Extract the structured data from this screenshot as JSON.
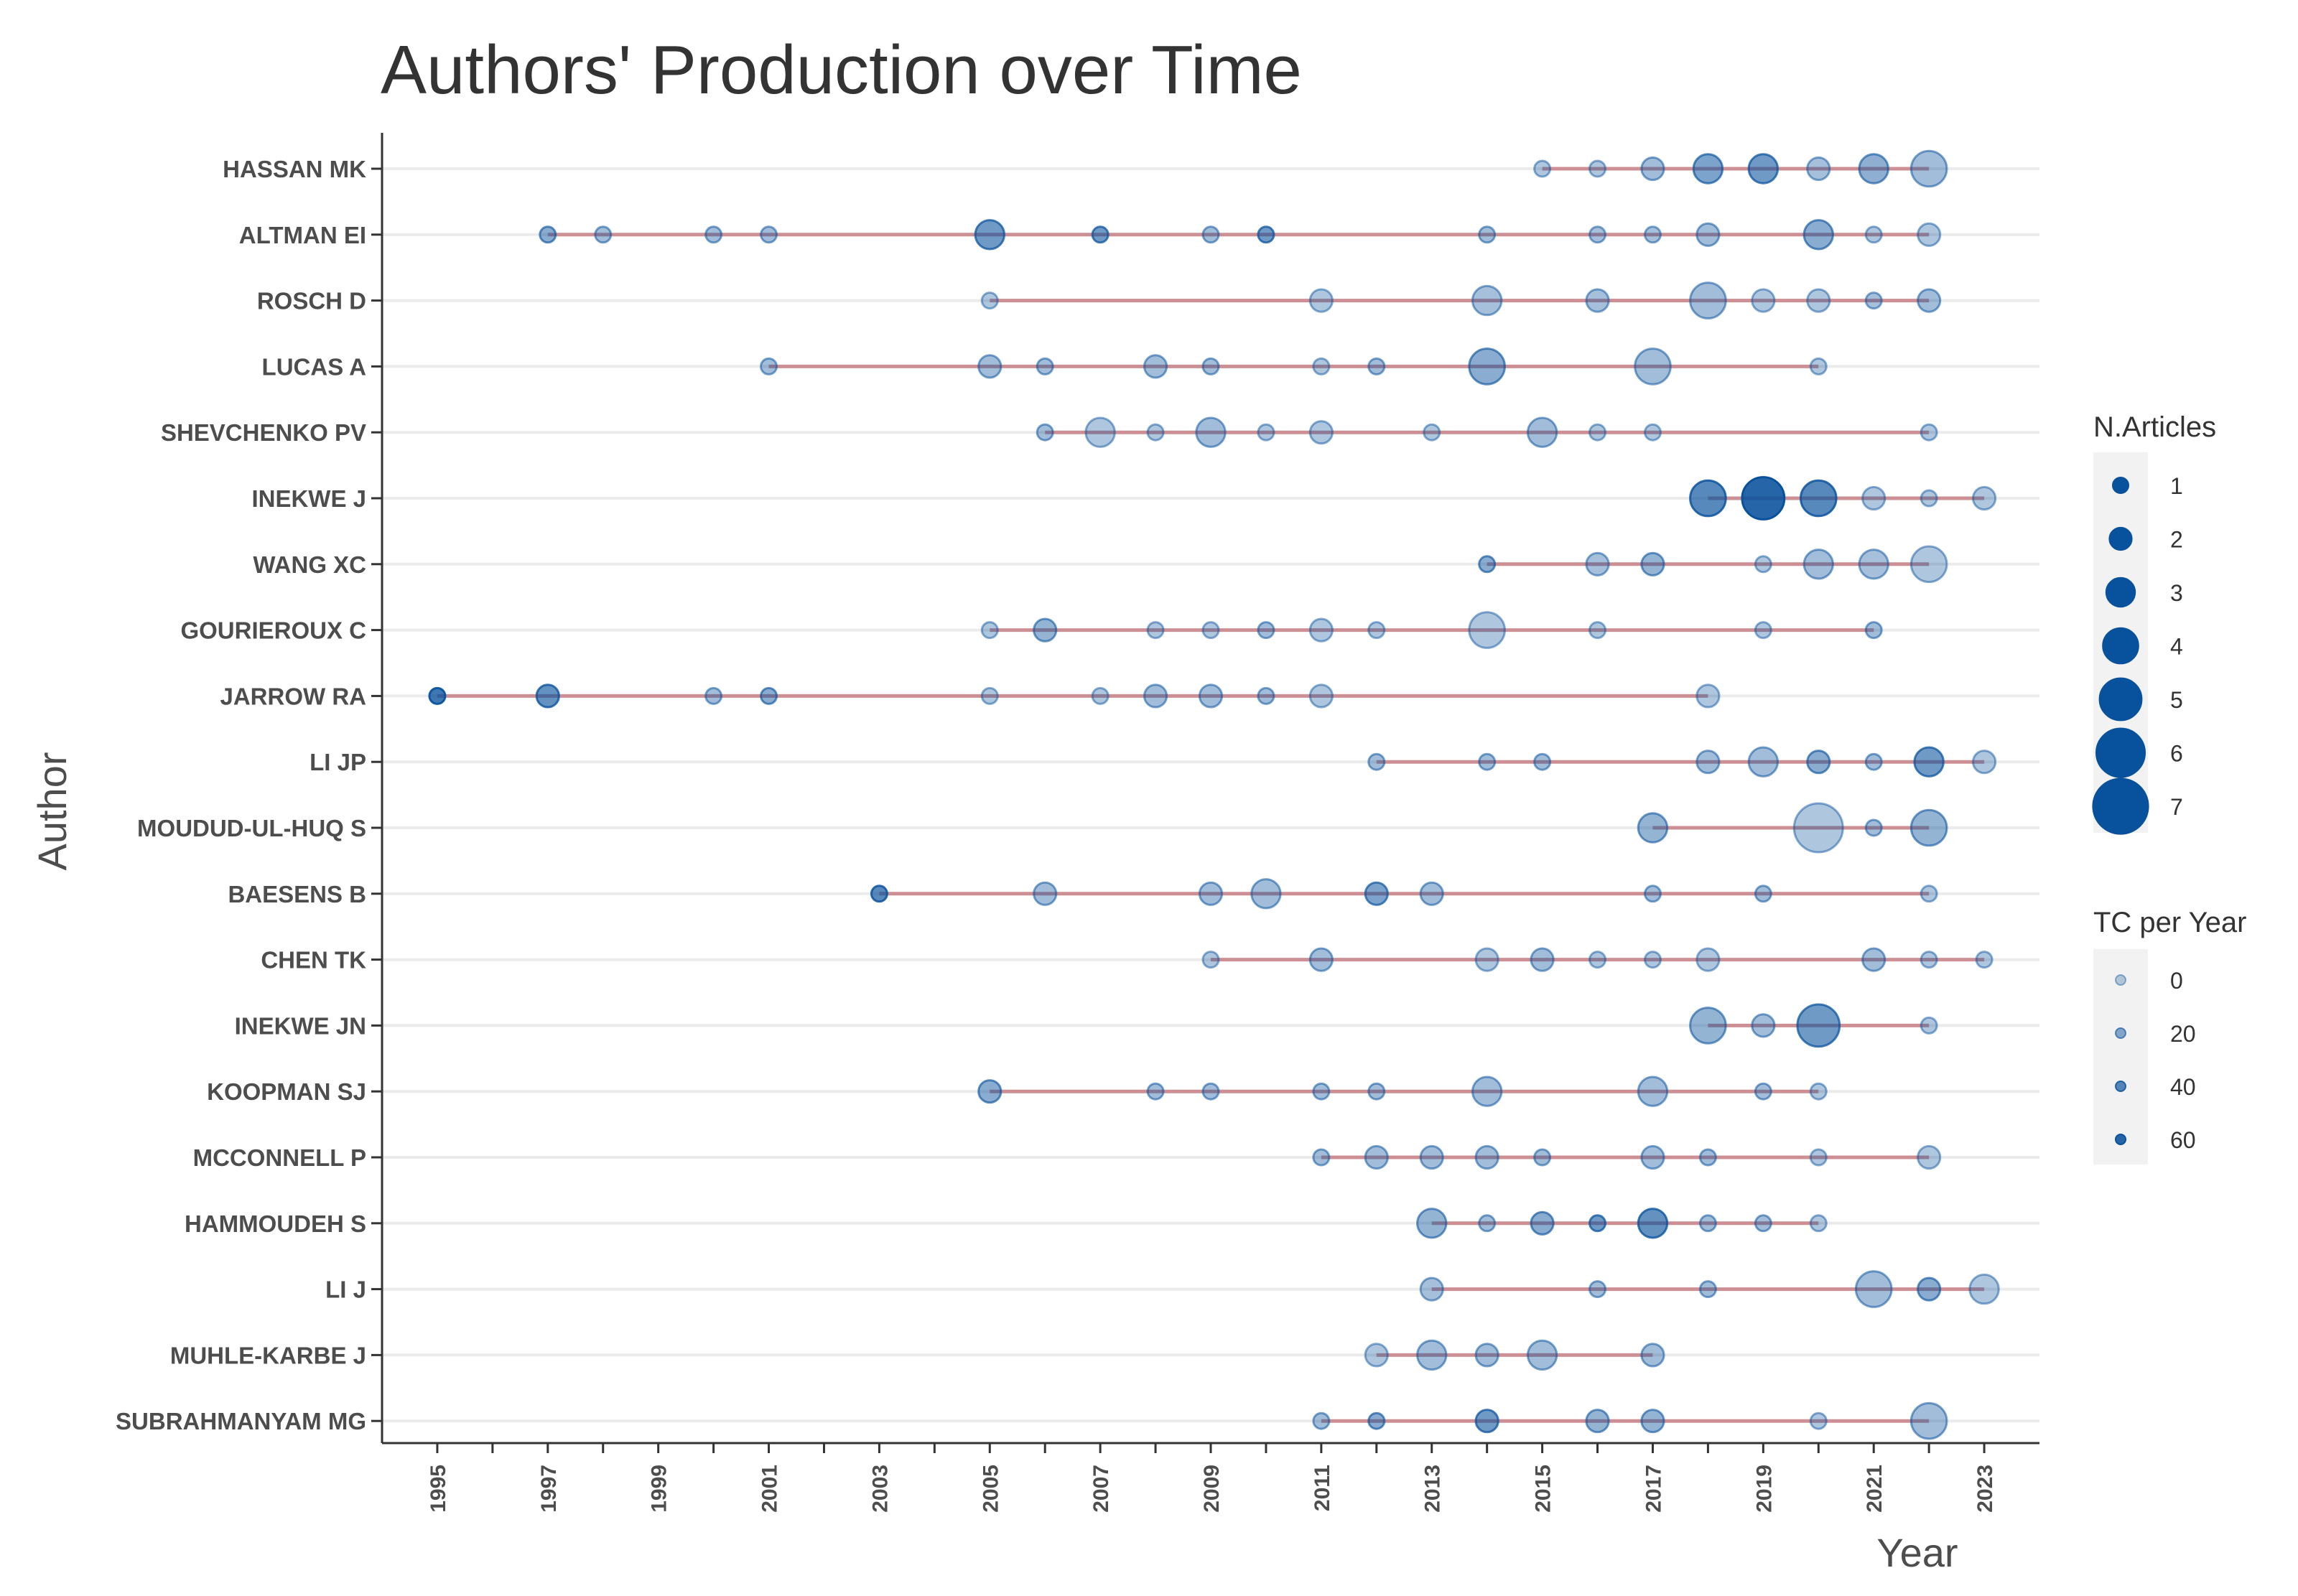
{
  "chart_data": {
    "type": "scatter",
    "title": "Authors' Production over Time",
    "xlabel": "Year",
    "ylabel": "Author",
    "xlim": [
      1994,
      2024
    ],
    "x_ticks": [
      "1995",
      "1997",
      "1999",
      "2001",
      "2003",
      "2005",
      "2007",
      "2009",
      "2011",
      "2013",
      "2015",
      "2017",
      "2019",
      "2021",
      "2023"
    ],
    "grid": true,
    "colors": {
      "point": "#08519c",
      "line": "#c9858a",
      "grid": "#ebebeb",
      "axis": "#333333",
      "legend_bg": "#f2f2f2"
    },
    "size_legend": {
      "title": "N.Articles",
      "values": [
        1,
        2,
        3,
        4,
        5,
        6,
        7
      ]
    },
    "tc_legend": {
      "title": "TC per Year",
      "values": [
        0,
        20,
        40,
        60
      ]
    },
    "authors": [
      {
        "name": "HASSAN MK",
        "points": [
          [
            2015,
            1,
            5
          ],
          [
            2016,
            1,
            5
          ],
          [
            2017,
            2,
            10
          ],
          [
            2018,
            3,
            25
          ],
          [
            2019,
            3,
            30
          ],
          [
            2020,
            2,
            8
          ],
          [
            2021,
            3,
            18
          ],
          [
            2022,
            4,
            10
          ]
        ]
      },
      {
        "name": "ALTMAN EI",
        "points": [
          [
            1997,
            1,
            20
          ],
          [
            1998,
            1,
            10
          ],
          [
            2000,
            1,
            10
          ],
          [
            2001,
            1,
            10
          ],
          [
            2005,
            3,
            30
          ],
          [
            2007,
            1,
            30
          ],
          [
            2009,
            1,
            10
          ],
          [
            2010,
            1,
            30
          ],
          [
            2014,
            1,
            10
          ],
          [
            2016,
            1,
            8
          ],
          [
            2017,
            1,
            8
          ],
          [
            2018,
            2,
            10
          ],
          [
            2020,
            3,
            20
          ],
          [
            2021,
            1,
            5
          ],
          [
            2022,
            2,
            5
          ]
        ]
      },
      {
        "name": "ROSCH D",
        "points": [
          [
            2005,
            1,
            5
          ],
          [
            2011,
            2,
            5
          ],
          [
            2014,
            3,
            8
          ],
          [
            2016,
            2,
            8
          ],
          [
            2018,
            4,
            10
          ],
          [
            2019,
            2,
            5
          ],
          [
            2020,
            2,
            5
          ],
          [
            2021,
            1,
            8
          ],
          [
            2022,
            2,
            10
          ]
        ]
      },
      {
        "name": "LUCAS A",
        "points": [
          [
            2001,
            1,
            10
          ],
          [
            2005,
            2,
            10
          ],
          [
            2006,
            1,
            10
          ],
          [
            2008,
            2,
            10
          ],
          [
            2009,
            1,
            10
          ],
          [
            2011,
            1,
            5
          ],
          [
            2012,
            1,
            10
          ],
          [
            2014,
            4,
            20
          ],
          [
            2017,
            4,
            10
          ],
          [
            2020,
            1,
            5
          ]
        ]
      },
      {
        "name": "SHEVCHENKO PV",
        "points": [
          [
            2006,
            1,
            10
          ],
          [
            2007,
            3,
            5
          ],
          [
            2008,
            1,
            5
          ],
          [
            2009,
            3,
            10
          ],
          [
            2010,
            1,
            5
          ],
          [
            2011,
            2,
            5
          ],
          [
            2013,
            1,
            5
          ],
          [
            2015,
            3,
            10
          ],
          [
            2016,
            1,
            5
          ],
          [
            2017,
            1,
            5
          ],
          [
            2022,
            1,
            5
          ]
        ]
      },
      {
        "name": "INEKWE J",
        "points": [
          [
            2018,
            4,
            40
          ],
          [
            2019,
            5,
            60
          ],
          [
            2020,
            4,
            40
          ],
          [
            2021,
            2,
            5
          ],
          [
            2022,
            1,
            5
          ],
          [
            2023,
            2,
            5
          ]
        ]
      },
      {
        "name": "WANG XC",
        "points": [
          [
            2014,
            1,
            20
          ],
          [
            2016,
            2,
            8
          ],
          [
            2017,
            2,
            15
          ],
          [
            2019,
            1,
            5
          ],
          [
            2020,
            3,
            10
          ],
          [
            2021,
            3,
            8
          ],
          [
            2022,
            4,
            5
          ]
        ]
      },
      {
        "name": "GOURIEROUX C",
        "points": [
          [
            2005,
            1,
            5
          ],
          [
            2006,
            2,
            15
          ],
          [
            2008,
            1,
            5
          ],
          [
            2009,
            1,
            5
          ],
          [
            2010,
            1,
            10
          ],
          [
            2011,
            2,
            5
          ],
          [
            2012,
            1,
            5
          ],
          [
            2014,
            4,
            5
          ],
          [
            2016,
            1,
            5
          ],
          [
            2019,
            1,
            5
          ],
          [
            2021,
            1,
            10
          ]
        ]
      },
      {
        "name": "JARROW RA",
        "points": [
          [
            1995,
            1,
            50
          ],
          [
            1997,
            2,
            35
          ],
          [
            2000,
            1,
            10
          ],
          [
            2001,
            1,
            20
          ],
          [
            2005,
            1,
            5
          ],
          [
            2007,
            1,
            5
          ],
          [
            2008,
            2,
            10
          ],
          [
            2009,
            2,
            10
          ],
          [
            2010,
            1,
            10
          ],
          [
            2011,
            2,
            5
          ],
          [
            2018,
            2,
            5
          ]
        ]
      },
      {
        "name": "LI JP",
        "points": [
          [
            2012,
            1,
            10
          ],
          [
            2014,
            1,
            10
          ],
          [
            2015,
            1,
            10
          ],
          [
            2018,
            2,
            10
          ],
          [
            2019,
            3,
            10
          ],
          [
            2020,
            2,
            20
          ],
          [
            2021,
            1,
            10
          ],
          [
            2022,
            3,
            30
          ],
          [
            2023,
            2,
            5
          ]
        ]
      },
      {
        "name": "MOUDUD-UL-HUQ S",
        "points": [
          [
            2017,
            3,
            15
          ],
          [
            2020,
            6,
            5
          ],
          [
            2021,
            1,
            10
          ],
          [
            2022,
            4,
            15
          ]
        ]
      },
      {
        "name": "BAESENS B",
        "points": [
          [
            2003,
            1,
            40
          ],
          [
            2006,
            2,
            10
          ],
          [
            2009,
            2,
            10
          ],
          [
            2010,
            3,
            10
          ],
          [
            2012,
            2,
            25
          ],
          [
            2013,
            2,
            10
          ],
          [
            2017,
            1,
            10
          ],
          [
            2019,
            1,
            10
          ],
          [
            2022,
            1,
            5
          ]
        ]
      },
      {
        "name": "CHEN TK",
        "points": [
          [
            2009,
            1,
            5
          ],
          [
            2011,
            2,
            10
          ],
          [
            2014,
            2,
            5
          ],
          [
            2015,
            2,
            10
          ],
          [
            2016,
            1,
            5
          ],
          [
            2017,
            1,
            5
          ],
          [
            2018,
            2,
            5
          ],
          [
            2021,
            2,
            10
          ],
          [
            2022,
            1,
            5
          ],
          [
            2023,
            1,
            5
          ]
        ]
      },
      {
        "name": "INEKWE JN",
        "points": [
          [
            2018,
            4,
            15
          ],
          [
            2019,
            2,
            10
          ],
          [
            2020,
            5,
            30
          ],
          [
            2022,
            1,
            5
          ]
        ]
      },
      {
        "name": "KOOPMAN SJ",
        "points": [
          [
            2005,
            2,
            20
          ],
          [
            2008,
            1,
            10
          ],
          [
            2009,
            1,
            10
          ],
          [
            2011,
            1,
            10
          ],
          [
            2012,
            1,
            10
          ],
          [
            2014,
            3,
            10
          ],
          [
            2017,
            3,
            10
          ],
          [
            2019,
            1,
            10
          ],
          [
            2020,
            1,
            5
          ]
        ]
      },
      {
        "name": "MCCONNELL P",
        "points": [
          [
            2011,
            1,
            10
          ],
          [
            2012,
            2,
            10
          ],
          [
            2013,
            2,
            10
          ],
          [
            2014,
            2,
            10
          ],
          [
            2015,
            1,
            10
          ],
          [
            2017,
            2,
            10
          ],
          [
            2018,
            1,
            10
          ],
          [
            2020,
            1,
            5
          ],
          [
            2022,
            2,
            5
          ]
        ]
      },
      {
        "name": "HAMMOUDEH S",
        "points": [
          [
            2013,
            3,
            15
          ],
          [
            2014,
            1,
            10
          ],
          [
            2015,
            2,
            20
          ],
          [
            2016,
            1,
            30
          ],
          [
            2017,
            3,
            35
          ],
          [
            2018,
            1,
            10
          ],
          [
            2019,
            1,
            10
          ],
          [
            2020,
            1,
            5
          ]
        ]
      },
      {
        "name": "LI J",
        "points": [
          [
            2013,
            2,
            8
          ],
          [
            2016,
            1,
            10
          ],
          [
            2018,
            1,
            10
          ],
          [
            2021,
            4,
            10
          ],
          [
            2022,
            2,
            20
          ],
          [
            2023,
            3,
            5
          ]
        ]
      },
      {
        "name": "MUHLE-KARBE J",
        "points": [
          [
            2012,
            2,
            5
          ],
          [
            2013,
            3,
            10
          ],
          [
            2014,
            2,
            10
          ],
          [
            2015,
            3,
            10
          ],
          [
            2017,
            2,
            10
          ]
        ]
      },
      {
        "name": "SUBRAHMANYAM MG",
        "points": [
          [
            2011,
            1,
            10
          ],
          [
            2012,
            1,
            20
          ],
          [
            2014,
            2,
            30
          ],
          [
            2016,
            2,
            15
          ],
          [
            2017,
            2,
            15
          ],
          [
            2020,
            1,
            5
          ],
          [
            2022,
            4,
            10
          ]
        ]
      }
    ]
  }
}
